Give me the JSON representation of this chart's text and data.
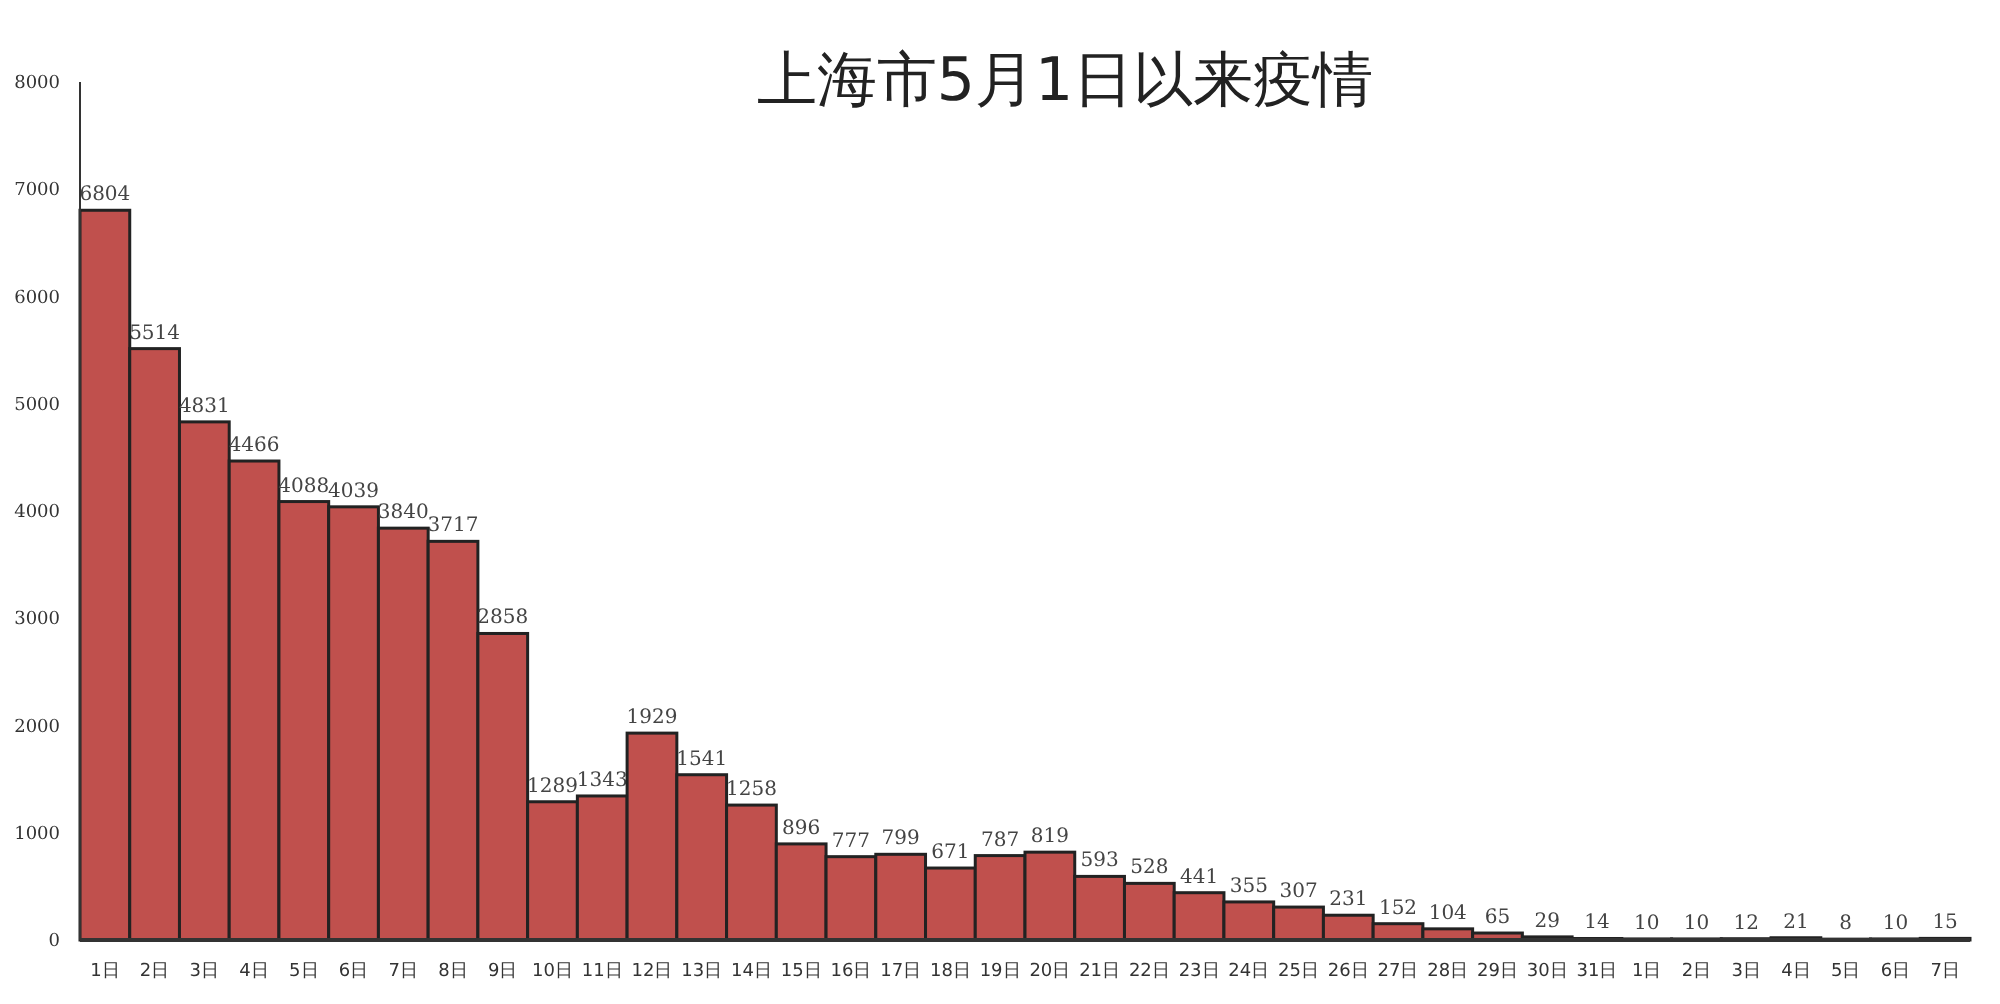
{
  "chart_data": {
    "type": "bar",
    "title": "上海市5月1日以来疫情",
    "categories": [
      "1日",
      "2日",
      "3日",
      "4日",
      "5日",
      "6日",
      "7日",
      "8日",
      "9日",
      "10日",
      "11日",
      "12日",
      "13日",
      "14日",
      "15日",
      "16日",
      "17日",
      "18日",
      "19日",
      "20日",
      "21日",
      "22日",
      "23日",
      "24日",
      "25日",
      "26日",
      "27日",
      "28日",
      "29日",
      "30日",
      "31日",
      "1日",
      "2日",
      "3日",
      "4日",
      "5日",
      "6日",
      "7日"
    ],
    "values": [
      6804,
      5514,
      4831,
      4466,
      4088,
      4039,
      3840,
      3717,
      2858,
      1289,
      1343,
      1929,
      1541,
      1258,
      896,
      777,
      799,
      671,
      787,
      819,
      593,
      528,
      441,
      355,
      307,
      231,
      152,
      104,
      65,
      29,
      14,
      10,
      10,
      12,
      21,
      8,
      10,
      15
    ],
    "color": "#c0504d",
    "ylim": [
      0,
      8000
    ],
    "yticks": [
      0,
      1000,
      2000,
      3000,
      4000,
      5000,
      6000,
      7000,
      8000
    ],
    "data_labels": true
  }
}
